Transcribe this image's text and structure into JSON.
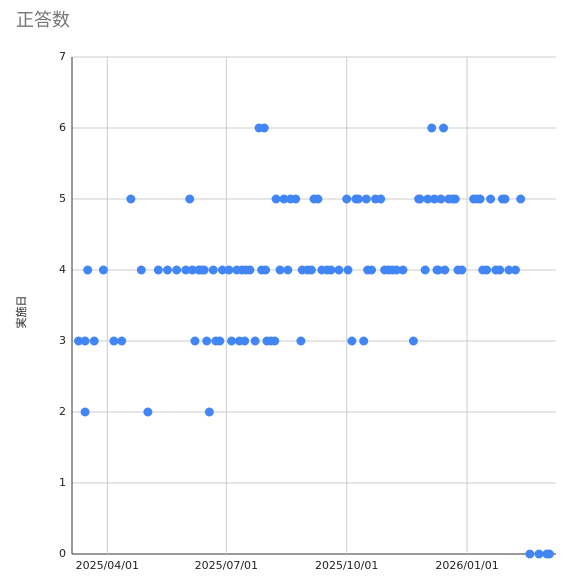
{
  "chart_data": {
    "type": "scatter",
    "title": "正答数",
    "y_label": "実施日",
    "color": "#4285f4",
    "grid": true,
    "x": [
      "2025/03/10",
      "2025/03/15",
      "2025/03/17",
      "2025/03/15",
      "2025/03/22",
      "2025/03/29",
      "2025/04/06",
      "2025/04/12",
      "2025/04/19",
      "2025/04/27",
      "2025/05/02",
      "2025/05/10",
      "2025/05/17",
      "2025/05/24",
      "2025/05/31",
      "2025/06/03",
      "2025/06/05",
      "2025/06/07",
      "2025/06/10",
      "2025/06/12",
      "2025/06/14",
      "2025/06/16",
      "2025/06/18",
      "2025/06/21",
      "2025/06/23",
      "2025/06/26",
      "2025/06/28",
      "2025/07/03",
      "2025/07/05",
      "2025/07/09",
      "2025/07/11",
      "2025/07/13",
      "2025/07/15",
      "2025/07/16",
      "2025/07/19",
      "2025/07/23",
      "2025/07/26",
      "2025/07/28",
      "2025/07/30",
      "2025/07/31",
      "2025/08/01",
      "2025/08/04",
      "2025/08/07",
      "2025/08/08",
      "2025/08/11",
      "2025/08/14",
      "2025/08/17",
      "2025/08/19",
      "2025/08/23",
      "2025/08/27",
      "2025/08/28",
      "2025/09/01",
      "2025/09/04",
      "2025/09/06",
      "2025/09/09",
      "2025/09/12",
      "2025/09/16",
      "2025/09/19",
      "2025/09/25",
      "2025/10/01",
      "2025/10/02",
      "2025/10/05",
      "2025/10/08",
      "2025/10/10",
      "2025/10/14",
      "2025/10/16",
      "2025/10/17",
      "2025/10/20",
      "2025/10/23",
      "2025/10/27",
      "2025/10/30",
      "2025/11/02",
      "2025/11/05",
      "2025/11/08",
      "2025/11/13",
      "2025/11/21",
      "2025/11/25",
      "2025/11/26",
      "2025/11/30",
      "2025/12/02",
      "2025/12/05",
      "2025/12/07",
      "2025/12/09",
      "2025/12/10",
      "2025/12/12",
      "2025/12/14",
      "2025/12/15",
      "2025/12/18",
      "2025/12/21",
      "2025/12/23",
      "2025/12/25",
      "2025/12/28",
      "2026/01/06",
      "2026/01/09",
      "2026/01/11",
      "2026/01/13",
      "2026/01/16",
      "2026/01/19",
      "2026/01/23",
      "2026/01/26",
      "2026/01/28",
      "2026/01/30",
      "2026/02/02",
      "2026/02/07",
      "2026/02/11",
      "2026/02/18",
      "2026/02/25",
      "2026/03/03",
      "2026/03/05"
    ],
    "values": [
      3,
      3,
      4,
      2,
      3,
      4,
      3,
      3,
      5,
      4,
      2,
      4,
      4,
      4,
      4,
      5,
      4,
      3,
      4,
      4,
      4,
      3,
      2,
      4,
      3,
      3,
      4,
      4,
      3,
      4,
      3,
      4,
      3,
      4,
      4,
      3,
      6,
      4,
      6,
      4,
      3,
      3,
      3,
      5,
      4,
      5,
      4,
      5,
      5,
      3,
      4,
      4,
      4,
      5,
      5,
      4,
      4,
      4,
      4,
      5,
      4,
      3,
      5,
      5,
      3,
      5,
      4,
      4,
      5,
      5,
      4,
      4,
      4,
      4,
      4,
      3,
      5,
      5,
      4,
      5,
      6,
      5,
      4,
      4,
      5,
      6,
      4,
      5,
      5,
      5,
      4,
      4,
      5,
      5,
      5,
      4,
      4,
      5,
      4,
      4,
      5,
      5,
      4,
      4,
      5,
      0,
      0,
      0,
      0
    ],
    "xlim": [
      "2025/03/05",
      "2026/03/10"
    ],
    "xticks": [
      "2025/04/01",
      "2025/07/01",
      "2025/10/01",
      "2026/01/01"
    ],
    "ylim": [
      0,
      7
    ],
    "yticks": [
      0,
      1,
      2,
      3,
      4,
      5,
      6,
      7
    ]
  }
}
